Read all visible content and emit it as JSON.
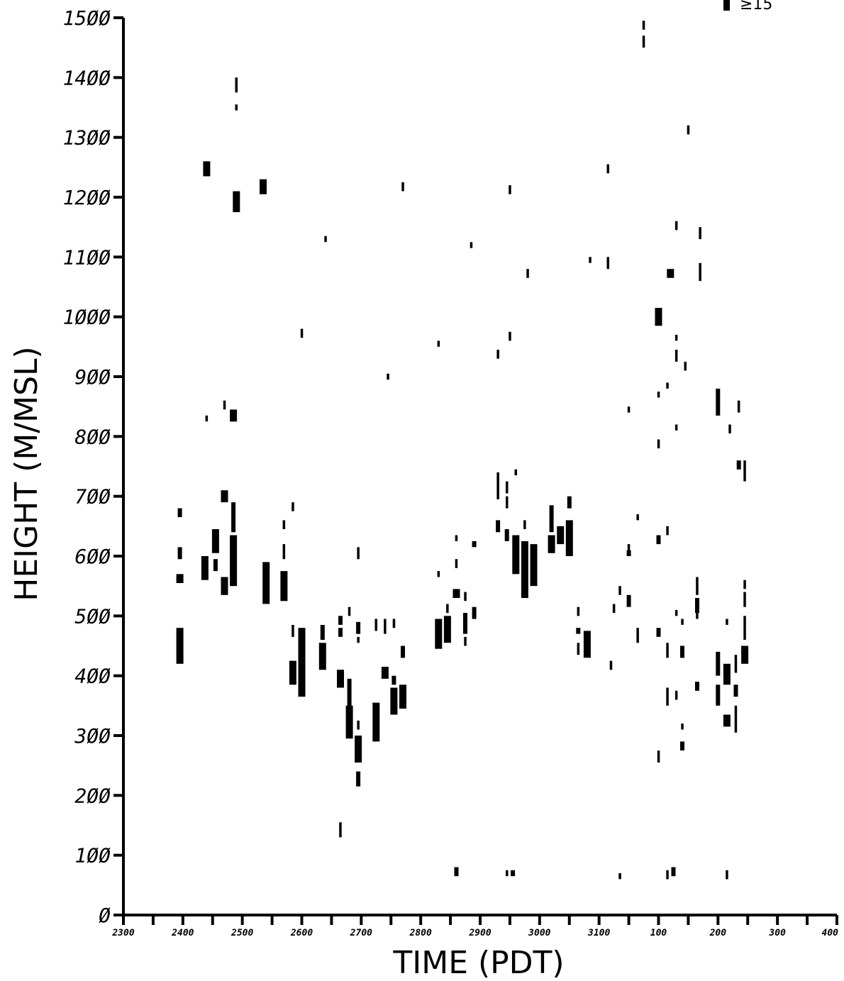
{
  "chart_data": {
    "type": "scatter",
    "xlabel": "TIME (PDT)",
    "ylabel": "HEIGHT (M/MSL)",
    "xlim": [
      0,
      1700
    ],
    "ylim": [
      0,
      1500
    ],
    "x_ticks": [
      {
        "x": 0,
        "label": "2300"
      },
      {
        "x": 100,
        "label": "2400"
      },
      {
        "x": 200,
        "label": "2500"
      },
      {
        "x": 300,
        "label": "2600"
      },
      {
        "x": 400,
        "label": "2700"
      },
      {
        "x": 500,
        "label": "2800"
      },
      {
        "x": 600,
        "label": "2900"
      },
      {
        "x": 700,
        "label": "3000"
      },
      {
        "x": 800,
        "label": "3100"
      },
      {
        "x": 900,
        "label": "100"
      },
      {
        "x": 1000,
        "label": "200"
      },
      {
        "x": 1100,
        "label": "300"
      },
      {
        "x": 1200,
        "label": "400"
      }
    ],
    "y_ticks": [
      {
        "y": 0,
        "label": "Ø"
      },
      {
        "y": 100,
        "label": "1ØØ"
      },
      {
        "y": 200,
        "label": "2ØØ"
      },
      {
        "y": 300,
        "label": "3ØØ"
      },
      {
        "y": 400,
        "label": "4ØØ"
      },
      {
        "y": 500,
        "label": "5ØØ"
      },
      {
        "y": 600,
        "label": "6ØØ"
      },
      {
        "y": 700,
        "label": "7ØØ"
      },
      {
        "y": 800,
        "label": "8ØØ"
      },
      {
        "y": 900,
        "label": "9ØØ"
      },
      {
        "y": 1000,
        "label": "1ØØØ"
      },
      {
        "y": 1100,
        "label": "11ØØ"
      },
      {
        "y": 1200,
        "label": "12ØØ"
      },
      {
        "y": 1300,
        "label": "13ØØ"
      },
      {
        "y": 1400,
        "label": "14ØØ"
      },
      {
        "y": 1500,
        "label": "15ØØ"
      }
    ],
    "legend": {
      "label": "≥15",
      "position": "top-right"
    },
    "grid": false,
    "segments_legend": "each segment: x (time offset), y0–y1 (height range, m), w (relative intensity class 1–3)",
    "segments": [
      {
        "x": 95,
        "y0": 420,
        "y1": 480,
        "w": 3
      },
      {
        "x": 95,
        "y0": 555,
        "y1": 570,
        "w": 3
      },
      {
        "x": 95,
        "y0": 595,
        "y1": 615,
        "w": 2
      },
      {
        "x": 95,
        "y0": 665,
        "y1": 680,
        "w": 2
      },
      {
        "x": 140,
        "y0": 1235,
        "y1": 1260,
        "w": 3
      },
      {
        "x": 140,
        "y0": 825,
        "y1": 835,
        "w": 1
      },
      {
        "x": 137,
        "y0": 560,
        "y1": 600,
        "w": 3
      },
      {
        "x": 155,
        "y0": 605,
        "y1": 645,
        "w": 3
      },
      {
        "x": 155,
        "y0": 575,
        "y1": 595,
        "w": 2
      },
      {
        "x": 170,
        "y0": 535,
        "y1": 565,
        "w": 3
      },
      {
        "x": 170,
        "y0": 690,
        "y1": 710,
        "w": 3
      },
      {
        "x": 170,
        "y0": 845,
        "y1": 860,
        "w": 1
      },
      {
        "x": 185,
        "y0": 550,
        "y1": 635,
        "w": 3
      },
      {
        "x": 185,
        "y0": 640,
        "y1": 690,
        "w": 2
      },
      {
        "x": 185,
        "y0": 825,
        "y1": 845,
        "w": 3
      },
      {
        "x": 190,
        "y0": 1175,
        "y1": 1210,
        "w": 3
      },
      {
        "x": 190,
        "y0": 1375,
        "y1": 1400,
        "w": 1
      },
      {
        "x": 190,
        "y0": 1345,
        "y1": 1355,
        "w": 1
      },
      {
        "x": 235,
        "y0": 1205,
        "y1": 1230,
        "w": 3
      },
      {
        "x": 240,
        "y0": 520,
        "y1": 590,
        "w": 3
      },
      {
        "x": 270,
        "y0": 525,
        "y1": 575,
        "w": 3
      },
      {
        "x": 270,
        "y0": 595,
        "y1": 620,
        "w": 1
      },
      {
        "x": 270,
        "y0": 645,
        "y1": 660,
        "w": 1
      },
      {
        "x": 285,
        "y0": 385,
        "y1": 425,
        "w": 3
      },
      {
        "x": 285,
        "y0": 465,
        "y1": 485,
        "w": 1
      },
      {
        "x": 285,
        "y0": 675,
        "y1": 690,
        "w": 1
      },
      {
        "x": 300,
        "y0": 365,
        "y1": 430,
        "w": 3
      },
      {
        "x": 300,
        "y0": 430,
        "y1": 480,
        "w": 3
      },
      {
        "x": 300,
        "y0": 965,
        "y1": 980,
        "w": 1
      },
      {
        "x": 335,
        "y0": 410,
        "y1": 455,
        "w": 3
      },
      {
        "x": 335,
        "y0": 460,
        "y1": 485,
        "w": 2
      },
      {
        "x": 340,
        "y0": 1125,
        "y1": 1135,
        "w": 1
      },
      {
        "x": 365,
        "y0": 380,
        "y1": 410,
        "w": 3
      },
      {
        "x": 365,
        "y0": 465,
        "y1": 480,
        "w": 2
      },
      {
        "x": 365,
        "y0": 485,
        "y1": 500,
        "w": 2
      },
      {
        "x": 365,
        "y0": 130,
        "y1": 155,
        "w": 1
      },
      {
        "x": 380,
        "y0": 295,
        "y1": 350,
        "w": 3
      },
      {
        "x": 380,
        "y0": 345,
        "y1": 395,
        "w": 2
      },
      {
        "x": 380,
        "y0": 500,
        "y1": 515,
        "w": 1
      },
      {
        "x": 395,
        "y0": 255,
        "y1": 300,
        "w": 3
      },
      {
        "x": 395,
        "y0": 215,
        "y1": 240,
        "w": 2
      },
      {
        "x": 395,
        "y0": 310,
        "y1": 325,
        "w": 1
      },
      {
        "x": 395,
        "y0": 470,
        "y1": 490,
        "w": 2
      },
      {
        "x": 395,
        "y0": 455,
        "y1": 465,
        "w": 1
      },
      {
        "x": 395,
        "y0": 595,
        "y1": 615,
        "w": 1
      },
      {
        "x": 425,
        "y0": 290,
        "y1": 355,
        "w": 3
      },
      {
        "x": 425,
        "y0": 475,
        "y1": 495,
        "w": 1
      },
      {
        "x": 440,
        "y0": 395,
        "y1": 415,
        "w": 3
      },
      {
        "x": 440,
        "y0": 470,
        "y1": 495,
        "w": 1
      },
      {
        "x": 445,
        "y0": 895,
        "y1": 905,
        "w": 1
      },
      {
        "x": 455,
        "y0": 335,
        "y1": 380,
        "w": 3
      },
      {
        "x": 455,
        "y0": 385,
        "y1": 400,
        "w": 2
      },
      {
        "x": 455,
        "y0": 480,
        "y1": 495,
        "w": 1
      },
      {
        "x": 470,
        "y0": 1210,
        "y1": 1225,
        "w": 1
      },
      {
        "x": 470,
        "y0": 345,
        "y1": 385,
        "w": 3
      },
      {
        "x": 470,
        "y0": 430,
        "y1": 450,
        "w": 2
      },
      {
        "x": 530,
        "y0": 445,
        "y1": 495,
        "w": 3
      },
      {
        "x": 530,
        "y0": 565,
        "y1": 575,
        "w": 1
      },
      {
        "x": 530,
        "y0": 950,
        "y1": 960,
        "w": 1
      },
      {
        "x": 545,
        "y0": 455,
        "y1": 500,
        "w": 3
      },
      {
        "x": 545,
        "y0": 505,
        "y1": 520,
        "w": 1
      },
      {
        "x": 560,
        "y0": 530,
        "y1": 545,
        "w": 3
      },
      {
        "x": 560,
        "y0": 580,
        "y1": 595,
        "w": 1
      },
      {
        "x": 560,
        "y0": 625,
        "y1": 635,
        "w": 1
      },
      {
        "x": 560,
        "y0": 65,
        "y1": 80,
        "w": 2
      },
      {
        "x": 575,
        "y0": 470,
        "y1": 505,
        "w": 2
      },
      {
        "x": 575,
        "y0": 525,
        "y1": 540,
        "w": 1
      },
      {
        "x": 575,
        "y0": 450,
        "y1": 465,
        "w": 1
      },
      {
        "x": 585,
        "y0": 1115,
        "y1": 1125,
        "w": 1
      },
      {
        "x": 590,
        "y0": 495,
        "y1": 515,
        "w": 2
      },
      {
        "x": 590,
        "y0": 615,
        "y1": 625,
        "w": 2
      },
      {
        "x": 630,
        "y0": 640,
        "y1": 660,
        "w": 2
      },
      {
        "x": 630,
        "y0": 695,
        "y1": 740,
        "w": 1
      },
      {
        "x": 630,
        "y0": 930,
        "y1": 945,
        "w": 1
      },
      {
        "x": 645,
        "y0": 625,
        "y1": 645,
        "w": 2
      },
      {
        "x": 645,
        "y0": 680,
        "y1": 700,
        "w": 1
      },
      {
        "x": 645,
        "y0": 705,
        "y1": 725,
        "w": 1
      },
      {
        "x": 650,
        "y0": 1205,
        "y1": 1220,
        "w": 1
      },
      {
        "x": 650,
        "y0": 960,
        "y1": 975,
        "w": 1
      },
      {
        "x": 645,
        "y0": 65,
        "y1": 75,
        "w": 1
      },
      {
        "x": 660,
        "y0": 570,
        "y1": 635,
        "w": 3
      },
      {
        "x": 660,
        "y0": 735,
        "y1": 745,
        "w": 1
      },
      {
        "x": 655,
        "y0": 65,
        "y1": 75,
        "w": 2
      },
      {
        "x": 675,
        "y0": 530,
        "y1": 625,
        "w": 3
      },
      {
        "x": 675,
        "y0": 645,
        "y1": 660,
        "w": 1
      },
      {
        "x": 680,
        "y0": 1065,
        "y1": 1080,
        "w": 1
      },
      {
        "x": 690,
        "y0": 550,
        "y1": 620,
        "w": 3
      },
      {
        "x": 720,
        "y0": 605,
        "y1": 635,
        "w": 3
      },
      {
        "x": 720,
        "y0": 640,
        "y1": 685,
        "w": 2
      },
      {
        "x": 735,
        "y0": 620,
        "y1": 650,
        "w": 3
      },
      {
        "x": 750,
        "y0": 600,
        "y1": 660,
        "w": 3
      },
      {
        "x": 750,
        "y0": 680,
        "y1": 700,
        "w": 2
      },
      {
        "x": 765,
        "y0": 470,
        "y1": 480,
        "w": 2
      },
      {
        "x": 765,
        "y0": 500,
        "y1": 515,
        "w": 1
      },
      {
        "x": 765,
        "y0": 435,
        "y1": 455,
        "w": 1
      },
      {
        "x": 780,
        "y0": 430,
        "y1": 475,
        "w": 3
      },
      {
        "x": 785,
        "y0": 1090,
        "y1": 1100,
        "w": 1
      },
      {
        "x": 815,
        "y0": 1080,
        "y1": 1100,
        "w": 1
      },
      {
        "x": 815,
        "y0": 1240,
        "y1": 1255,
        "w": 1
      },
      {
        "x": 825,
        "y0": 505,
        "y1": 520,
        "w": 1
      },
      {
        "x": 820,
        "y0": 410,
        "y1": 425,
        "w": 1
      },
      {
        "x": 835,
        "y0": 535,
        "y1": 550,
        "w": 1
      },
      {
        "x": 835,
        "y0": 60,
        "y1": 70,
        "w": 1
      },
      {
        "x": 850,
        "y0": 515,
        "y1": 535,
        "w": 2
      },
      {
        "x": 850,
        "y0": 600,
        "y1": 610,
        "w": 2
      },
      {
        "x": 850,
        "y0": 610,
        "y1": 620,
        "w": 1
      },
      {
        "x": 850,
        "y0": 840,
        "y1": 850,
        "w": 1
      },
      {
        "x": 865,
        "y0": 455,
        "y1": 480,
        "w": 1
      },
      {
        "x": 865,
        "y0": 660,
        "y1": 670,
        "w": 1
      },
      {
        "x": 875,
        "y0": 1450,
        "y1": 1470,
        "w": 1
      },
      {
        "x": 875,
        "y0": 1480,
        "y1": 1495,
        "w": 1
      },
      {
        "x": 900,
        "y0": 465,
        "y1": 480,
        "w": 2
      },
      {
        "x": 900,
        "y0": 620,
        "y1": 635,
        "w": 2
      },
      {
        "x": 900,
        "y0": 780,
        "y1": 795,
        "w": 1
      },
      {
        "x": 900,
        "y0": 865,
        "y1": 875,
        "w": 1
      },
      {
        "x": 900,
        "y0": 255,
        "y1": 275,
        "w": 1
      },
      {
        "x": 900,
        "y0": 985,
        "y1": 1015,
        "w": 3
      },
      {
        "x": 915,
        "y0": 430,
        "y1": 455,
        "w": 1
      },
      {
        "x": 915,
        "y0": 350,
        "y1": 380,
        "w": 1
      },
      {
        "x": 915,
        "y0": 635,
        "y1": 650,
        "w": 1
      },
      {
        "x": 915,
        "y0": 880,
        "y1": 890,
        "w": 1
      },
      {
        "x": 915,
        "y0": 60,
        "y1": 75,
        "w": 1
      },
      {
        "x": 920,
        "y0": 1065,
        "y1": 1080,
        "w": 3
      },
      {
        "x": 925,
        "y0": 65,
        "y1": 80,
        "w": 2
      },
      {
        "x": 930,
        "y0": 360,
        "y1": 375,
        "w": 1
      },
      {
        "x": 930,
        "y0": 500,
        "y1": 510,
        "w": 1
      },
      {
        "x": 930,
        "y0": 810,
        "y1": 820,
        "w": 1
      },
      {
        "x": 930,
        "y0": 925,
        "y1": 945,
        "w": 1
      },
      {
        "x": 930,
        "y0": 960,
        "y1": 970,
        "w": 1
      },
      {
        "x": 930,
        "y0": 1145,
        "y1": 1160,
        "w": 1
      },
      {
        "x": 940,
        "y0": 275,
        "y1": 290,
        "w": 2
      },
      {
        "x": 940,
        "y0": 310,
        "y1": 320,
        "w": 1
      },
      {
        "x": 940,
        "y0": 430,
        "y1": 450,
        "w": 2
      },
      {
        "x": 940,
        "y0": 485,
        "y1": 495,
        "w": 1
      },
      {
        "x": 945,
        "y0": 910,
        "y1": 925,
        "w": 1
      },
      {
        "x": 950,
        "y0": 1305,
        "y1": 1320,
        "w": 1
      },
      {
        "x": 965,
        "y0": 375,
        "y1": 390,
        "w": 2
      },
      {
        "x": 965,
        "y0": 505,
        "y1": 530,
        "w": 2
      },
      {
        "x": 965,
        "y0": 535,
        "y1": 565,
        "w": 1
      },
      {
        "x": 965,
        "y0": 495,
        "y1": 505,
        "w": 1
      },
      {
        "x": 970,
        "y0": 1060,
        "y1": 1090,
        "w": 1
      },
      {
        "x": 970,
        "y0": 1130,
        "y1": 1150,
        "w": 1
      },
      {
        "x": 1000,
        "y0": 350,
        "y1": 385,
        "w": 2
      },
      {
        "x": 1000,
        "y0": 400,
        "y1": 440,
        "w": 2
      },
      {
        "x": 1000,
        "y0": 835,
        "y1": 880,
        "w": 2
      },
      {
        "x": 1015,
        "y0": 315,
        "y1": 335,
        "w": 3
      },
      {
        "x": 1015,
        "y0": 385,
        "y1": 420,
        "w": 3
      },
      {
        "x": 1015,
        "y0": 485,
        "y1": 495,
        "w": 1
      },
      {
        "x": 1015,
        "y0": 60,
        "y1": 75,
        "w": 1
      },
      {
        "x": 1020,
        "y0": 805,
        "y1": 820,
        "w": 1
      },
      {
        "x": 1030,
        "y0": 305,
        "y1": 350,
        "w": 1
      },
      {
        "x": 1030,
        "y0": 365,
        "y1": 385,
        "w": 2
      },
      {
        "x": 1030,
        "y0": 405,
        "y1": 435,
        "w": 1
      },
      {
        "x": 1035,
        "y0": 840,
        "y1": 860,
        "w": 1
      },
      {
        "x": 1035,
        "y0": 745,
        "y1": 760,
        "w": 2
      },
      {
        "x": 1045,
        "y0": 420,
        "y1": 450,
        "w": 3
      },
      {
        "x": 1045,
        "y0": 460,
        "y1": 500,
        "w": 1
      },
      {
        "x": 1045,
        "y0": 515,
        "y1": 540,
        "w": 1
      },
      {
        "x": 1045,
        "y0": 545,
        "y1": 560,
        "w": 1
      },
      {
        "x": 1045,
        "y0": 725,
        "y1": 760,
        "w": 1
      }
    ]
  }
}
